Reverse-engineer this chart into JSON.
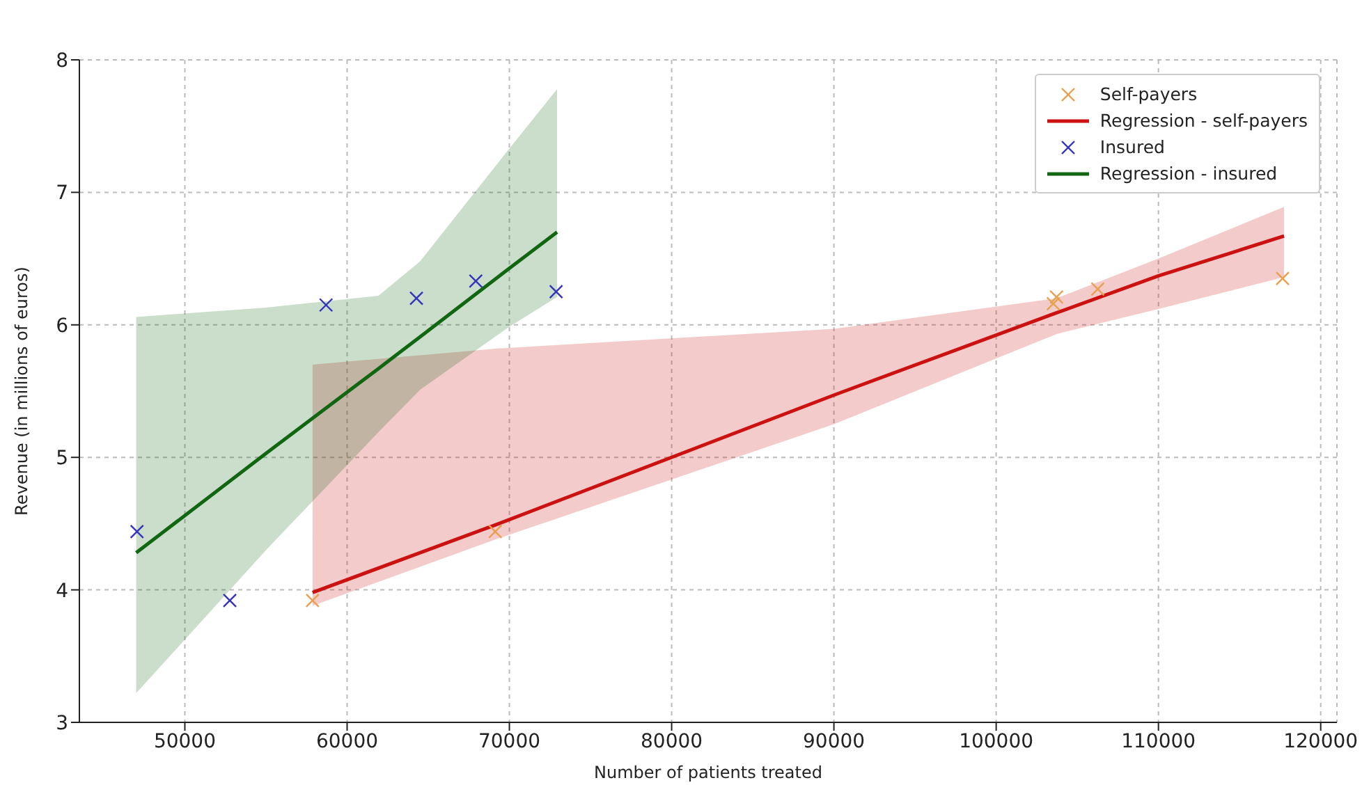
{
  "chart_data": {
    "type": "scatter",
    "xlabel": "Number of patients treated",
    "ylabel": "Revenue (in millions of euros)",
    "xlim": [
      43500,
      121000
    ],
    "xticks": [
      50000,
      60000,
      70000,
      80000,
      90000,
      100000,
      110000,
      120000
    ],
    "ylim": [
      3,
      8
    ],
    "yticks": [
      3,
      4,
      5,
      6,
      7,
      8
    ],
    "grid": true,
    "legend": "top right",
    "marker": "cross",
    "series": [
      {
        "name": "Self-payers",
        "color": "#e8a050",
        "x": [
          57870,
          69130,
          103520,
          103720,
          106260,
          117650
        ],
        "values": [
          3.92,
          4.44,
          6.16,
          6.21,
          6.27,
          6.35
        ]
      },
      {
        "name": "Regression - self-payers",
        "type": "line",
        "marker": "none",
        "color": "#cc1111",
        "x": [
          57870,
          69130,
          90000,
          103700,
          110000,
          117740
        ],
        "values": [
          3.98,
          4.49,
          5.47,
          6.09,
          6.37,
          6.67
        ],
        "lower": [
          3.88,
          4.38,
          5.25,
          5.93,
          6.12,
          6.36
        ],
        "upper": [
          5.7,
          5.82,
          5.97,
          6.2,
          6.5,
          6.89
        ]
      },
      {
        "name": "Insured",
        "color": "#3333bb",
        "x": [
          47050,
          52770,
          58700,
          64270,
          67930,
          72880
        ],
        "values": [
          4.44,
          3.92,
          6.15,
          6.2,
          6.33,
          6.25
        ]
      },
      {
        "name": "Regression - insured",
        "type": "line",
        "marker": "none",
        "color": "#116611",
        "x": [
          47000,
          55000,
          61930,
          64500,
          69930,
          72940
        ],
        "values": [
          4.28,
          5.03,
          5.67,
          5.91,
          6.42,
          6.7
        ],
        "lower": [
          3.22,
          4.3,
          5.19,
          5.51,
          5.98,
          6.21
        ],
        "upper": [
          6.06,
          6.13,
          6.22,
          6.48,
          7.32,
          7.78
        ]
      }
    ]
  }
}
